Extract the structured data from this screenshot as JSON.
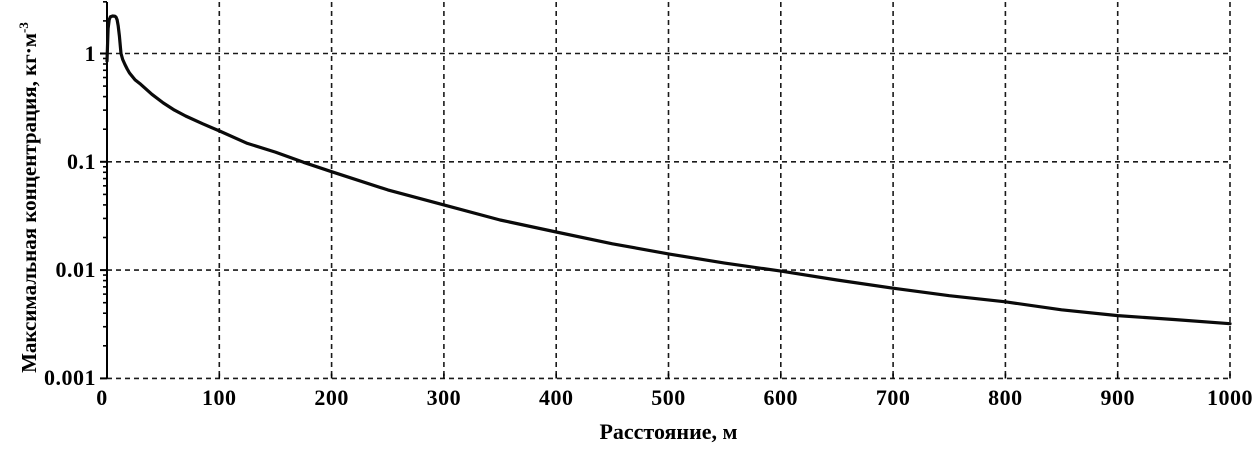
{
  "chart_data": {
    "type": "line",
    "title": "",
    "xlabel": "Расстояние, м",
    "ylabel_base": "Максимальная концентрация, кг·м",
    "ylabel_exponent": "-3",
    "x_axis": {
      "ticks": [
        0,
        100,
        200,
        300,
        400,
        500,
        600,
        700,
        800,
        900,
        1000
      ],
      "tick_labels": [
        "0",
        "100",
        "200",
        "300",
        "400",
        "500",
        "600",
        "700",
        "800",
        "900",
        "1000"
      ],
      "xlim": [
        0,
        1000
      ],
      "scale": "linear"
    },
    "y_axis": {
      "ticks": [
        1,
        0.1,
        0.01,
        0.001
      ],
      "tick_labels": [
        "1",
        "0.1",
        "0.01",
        "0.001"
      ],
      "ylim": [
        0.001,
        3
      ],
      "scale": "log",
      "minor_ticks_per_decade": [
        2,
        3,
        4,
        5,
        6,
        7,
        8,
        9
      ]
    },
    "grid": {
      "style": "dashed",
      "color": "#1a1a1a",
      "on": true
    },
    "legend": "none",
    "line_color": "#0a0a0a",
    "background": "#ffffff",
    "series": [
      {
        "x": [
          0,
          1,
          2,
          3,
          5,
          7,
          8,
          9,
          10,
          11,
          12,
          12.5,
          14,
          16,
          18,
          20,
          25,
          30,
          40,
          50,
          60,
          70,
          85,
          100,
          125,
          150,
          175,
          200,
          250,
          300,
          350,
          400,
          450,
          500,
          550,
          600,
          650,
          700,
          750,
          800,
          850,
          900,
          950,
          1000
        ],
        "y": [
          0.85,
          1.7,
          2.05,
          2.18,
          2.22,
          2.21,
          2.17,
          2.05,
          1.8,
          1.45,
          1.12,
          1.0,
          0.88,
          0.79,
          0.72,
          0.66,
          0.57,
          0.52,
          0.42,
          0.35,
          0.3,
          0.265,
          0.225,
          0.193,
          0.148,
          0.123,
          0.099,
          0.081,
          0.055,
          0.04,
          0.029,
          0.0225,
          0.0175,
          0.0141,
          0.0116,
          0.0098,
          0.0081,
          0.0068,
          0.0058,
          0.0051,
          0.0043,
          0.0038,
          0.0035,
          0.0032
        ]
      }
    ]
  }
}
